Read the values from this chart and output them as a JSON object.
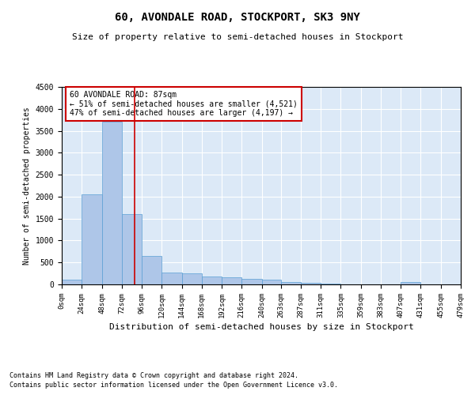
{
  "title": "60, AVONDALE ROAD, STOCKPORT, SK3 9NY",
  "subtitle": "Size of property relative to semi-detached houses in Stockport",
  "xlabel": "Distribution of semi-detached houses by size in Stockport",
  "ylabel": "Number of semi-detached properties",
  "annotation_line1": "60 AVONDALE ROAD: 87sqm",
  "annotation_line2": "← 51% of semi-detached houses are smaller (4,521)",
  "annotation_line3": "47% of semi-detached houses are larger (4,197) →",
  "property_sqm": 87,
  "bin_edges": [
    0,
    24,
    48,
    72,
    96,
    120,
    144,
    168,
    192,
    216,
    240,
    263,
    287,
    311,
    335,
    359,
    383,
    407,
    431,
    455,
    479
  ],
  "bar_heights": [
    100,
    2050,
    3700,
    1600,
    650,
    270,
    260,
    185,
    160,
    130,
    110,
    60,
    40,
    25,
    5,
    0,
    0,
    60,
    0,
    0
  ],
  "bar_color": "#aec6e8",
  "bar_edge_color": "#5a9fd4",
  "red_line_color": "#cc0000",
  "annotation_box_color": "#cc0000",
  "background_color": "#dce9f7",
  "ylim": [
    0,
    4500
  ],
  "footnote1": "Contains HM Land Registry data © Crown copyright and database right 2024.",
  "footnote2": "Contains public sector information licensed under the Open Government Licence v3.0."
}
